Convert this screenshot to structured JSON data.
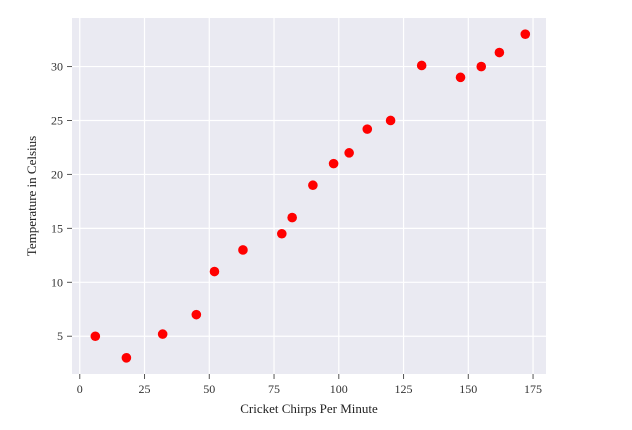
{
  "chart_data": {
    "type": "scatter",
    "title": "",
    "xlabel": "Cricket Chirps Per Minute",
    "ylabel": "Temperature in Celsius",
    "xlim": [
      -3,
      180
    ],
    "ylim": [
      1.5,
      34.5
    ],
    "xticks": [
      0,
      25,
      50,
      75,
      100,
      125,
      150,
      175
    ],
    "yticks": [
      5,
      10,
      15,
      20,
      25,
      30
    ],
    "grid": true,
    "background_color": "#eaeaf2",
    "grid_color": "#ffffff",
    "marker_color": "#ff0000",
    "series": [
      {
        "x": [
          6,
          18,
          32,
          45,
          52,
          63,
          78,
          82,
          90,
          98,
          104,
          111,
          120,
          132,
          147,
          155,
          162,
          172
        ],
        "y": [
          5.0,
          3.0,
          5.2,
          7.0,
          11.0,
          13.0,
          14.5,
          16.0,
          19.0,
          21.0,
          22.0,
          24.2,
          25.0,
          30.1,
          29.0,
          30.0,
          31.3,
          33.0
        ]
      }
    ]
  }
}
